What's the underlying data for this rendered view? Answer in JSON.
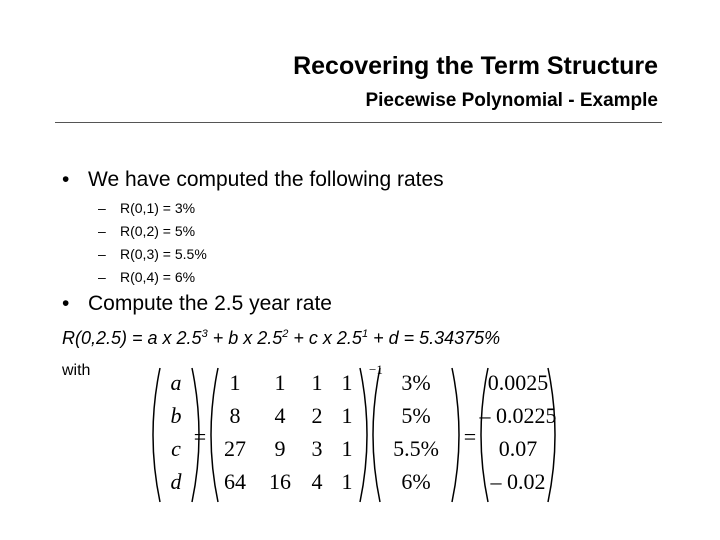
{
  "header": {
    "title": "Recovering the Term Structure",
    "subtitle": "Piecewise Polynomial - Example"
  },
  "bullets": [
    {
      "text": "We have computed the following rates"
    },
    {
      "text": "Compute the 2.5 year rate"
    }
  ],
  "rates": [
    "R(0,1) = 3%",
    "R(0,2) = 5%",
    "R(0,3) = 5.5%",
    "R(0,4) = 6%"
  ],
  "formula": {
    "p1": "R(0,2.5) = a x 2.5",
    "e1": "3",
    "p2": " + b x 2.5",
    "e2": "2",
    "p3": " + c x 2.5",
    "e3": "1",
    "p4": " + d = 5.34375%"
  },
  "with_label": "with",
  "matrix": {
    "vars": [
      "a",
      "b",
      "c",
      "d"
    ],
    "equals": "=",
    "inverse_exp": "−1",
    "A": [
      [
        "1",
        "1",
        "1",
        "1"
      ],
      [
        "8",
        "4",
        "2",
        "1"
      ],
      [
        "27",
        "9",
        "3",
        "1"
      ],
      [
        "64",
        "16",
        "4",
        "1"
      ]
    ],
    "rhs": [
      "3%",
      "5%",
      "5.5%",
      "6%"
    ],
    "result": [
      "0.0025",
      "– 0.0225",
      "0.07",
      "– 0.02"
    ]
  }
}
